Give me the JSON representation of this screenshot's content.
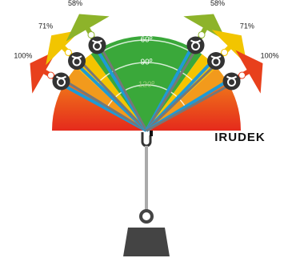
{
  "legs": [
    {
      "label": "100%"
    },
    {
      "label": "71%"
    },
    {
      "label": "58%"
    },
    {
      "label": "58%"
    },
    {
      "label": "71%"
    },
    {
      "label": "100%"
    }
  ],
  "angles": [
    "60º",
    "90º",
    "120º"
  ],
  "brand": "IRUDEK"
}
